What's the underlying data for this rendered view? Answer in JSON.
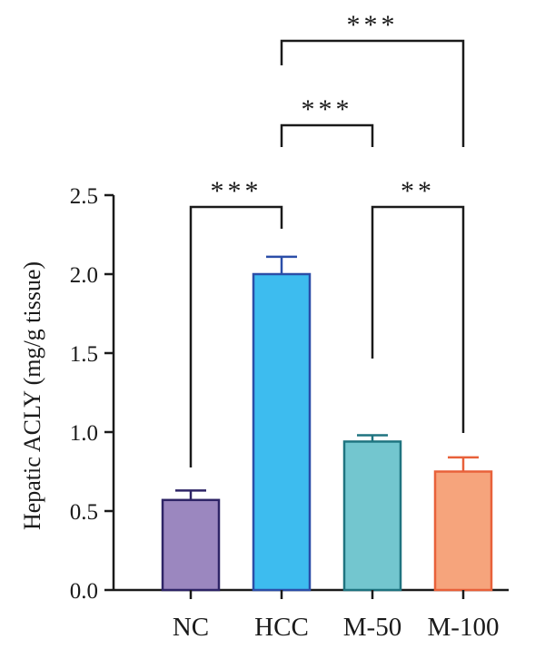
{
  "chart_data": {
    "type": "bar",
    "title": "",
    "xlabel": "",
    "ylabel": "Hepatic ACLY (mg/g tissue)",
    "ylim": [
      0,
      2.5
    ],
    "yticks": [
      "0.0",
      "0.5",
      "1.0",
      "1.5",
      "2.0",
      "2.5"
    ],
    "categories": [
      "NC",
      "HCC",
      "M-50",
      "M-100"
    ],
    "values": [
      0.57,
      2.0,
      0.94,
      0.75
    ],
    "errors": [
      0.06,
      0.11,
      0.04,
      0.09
    ],
    "colors": {
      "fill": [
        "#9b87bf",
        "#3dbcef",
        "#73c6cf",
        "#f6a47c"
      ],
      "stroke": [
        "#2e2466",
        "#2b4ea8",
        "#1f7480",
        "#e8613a"
      ]
    },
    "significance": [
      {
        "from": "NC",
        "to": "HCC",
        "label": "***"
      },
      {
        "from": "M-50",
        "to": "M-100",
        "label": "**"
      },
      {
        "from": "HCC",
        "to": "M-50",
        "label": "***"
      },
      {
        "from": "HCC",
        "to": "M-100",
        "label": "***"
      }
    ],
    "grid": false,
    "legend": "none"
  }
}
